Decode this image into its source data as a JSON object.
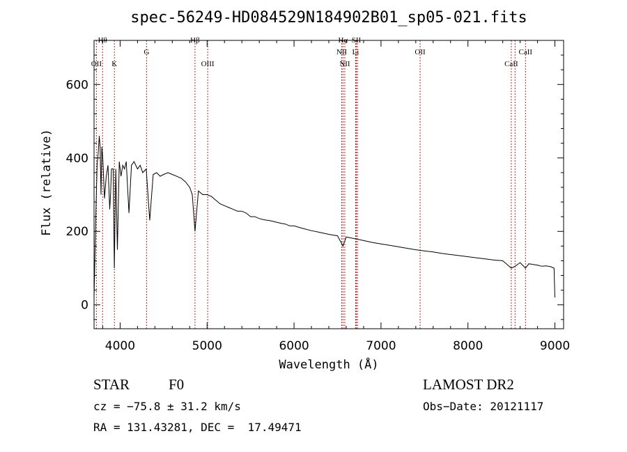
{
  "chart_data": {
    "type": "line",
    "title": "spec-56249-HD084529N184902B01_sp05-021.fits",
    "xlabel": "Wavelength (Å)",
    "ylabel": "Flux (relative)",
    "xlim": [
      3700,
      9100
    ],
    "ylim": [
      -65,
      720
    ],
    "x_ticks": [
      "4000",
      "5000",
      "6000",
      "7000",
      "8000",
      "9000"
    ],
    "x_tick_values": [
      4000,
      5000,
      6000,
      7000,
      8000,
      9000
    ],
    "y_ticks": [
      "0",
      "200",
      "400",
      "600"
    ],
    "y_tick_values": [
      0,
      200,
      400,
      600
    ],
    "grid": false,
    "line_color": "#000000",
    "marker_color": "#b22222",
    "series": [
      {
        "x": [
          3700,
          3720,
          3735,
          3750,
          3760,
          3770,
          3780,
          3790,
          3800,
          3820,
          3840,
          3860,
          3880,
          3890,
          3900,
          3920,
          3933,
          3950,
          3968,
          3990,
          4010,
          4030,
          4050,
          4070,
          4101,
          4130,
          4160,
          4200,
          4230,
          4260,
          4300,
          4340,
          4380,
          4420,
          4460,
          4500,
          4550,
          4600,
          4650,
          4700,
          4750,
          4800,
          4830,
          4861,
          4900,
          4950,
          5000,
          5050,
          5100,
          5150,
          5200,
          5250,
          5300,
          5350,
          5400,
          5450,
          5500,
          5550,
          5600,
          5650,
          5700,
          5750,
          5800,
          5850,
          5900,
          5950,
          6000,
          6100,
          6200,
          6300,
          6400,
          6500,
          6563,
          6600,
          6700,
          6800,
          6900,
          7000,
          7100,
          7200,
          7300,
          7400,
          7500,
          7600,
          7700,
          7800,
          7900,
          8000,
          8100,
          8200,
          8300,
          8400,
          8450,
          8498,
          8542,
          8600,
          8662,
          8700,
          8750,
          8800,
          8850,
          8900,
          8950,
          8990,
          9000
        ],
        "y": [
          20,
          240,
          380,
          420,
          460,
          430,
          300,
          430,
          400,
          290,
          350,
          380,
          260,
          300,
          370,
          370,
          100,
          370,
          150,
          390,
          350,
          380,
          370,
          390,
          250,
          380,
          390,
          370,
          380,
          360,
          370,
          230,
          355,
          360,
          350,
          355,
          360,
          355,
          350,
          345,
          335,
          320,
          300,
          200,
          310,
          300,
          300,
          295,
          285,
          275,
          270,
          265,
          260,
          255,
          255,
          250,
          240,
          240,
          235,
          232,
          230,
          228,
          225,
          222,
          220,
          215,
          215,
          208,
          202,
          197,
          192,
          188,
          160,
          185,
          180,
          175,
          170,
          166,
          162,
          158,
          154,
          150,
          147,
          144,
          140,
          137,
          134,
          131,
          128,
          125,
          122,
          120,
          110,
          100,
          105,
          115,
          100,
          112,
          110,
          108,
          105,
          106,
          104,
          100,
          20
        ]
      }
    ],
    "line_markers": [
      {
        "label": "Hθ",
        "x": 3798,
        "row": 0
      },
      {
        "label": "OII",
        "x": 3727,
        "row": 2
      },
      {
        "label": "K",
        "x": 3934,
        "row": 2
      },
      {
        "label": "G",
        "x": 4304,
        "row": 1
      },
      {
        "label": "Hβ",
        "x": 4861,
        "row": 0
      },
      {
        "label": "OIII",
        "x": 5007,
        "row": 2
      },
      {
        "label": "Hα",
        "x": 6563,
        "row": 0
      },
      {
        "label": "SII",
        "x": 6716,
        "row": 0
      },
      {
        "label": "NII",
        "x": 6548,
        "row": 1
      },
      {
        "label": "Li",
        "x": 6708,
        "row": 1
      },
      {
        "label": "NII",
        "x": 6584,
        "row": 2
      },
      {
        "label": "OII",
        "x": 7450,
        "row": 1
      },
      {
        "label": "CaII",
        "x": 8498,
        "row": 2
      },
      {
        "label": "CaII",
        "x": 8662,
        "row": 1
      }
    ],
    "extra_marker_lines": [
      6716,
      6731,
      8542
    ]
  },
  "info": {
    "object_class": "STAR",
    "subclass": "F0",
    "survey": "LAMOST DR2",
    "redshift": "cz = −75.8 ± 31.2 km/s",
    "obs_date": "Obs−Date: 20121117",
    "coords": "RA = 131.43281, DEC =  17.49471"
  }
}
